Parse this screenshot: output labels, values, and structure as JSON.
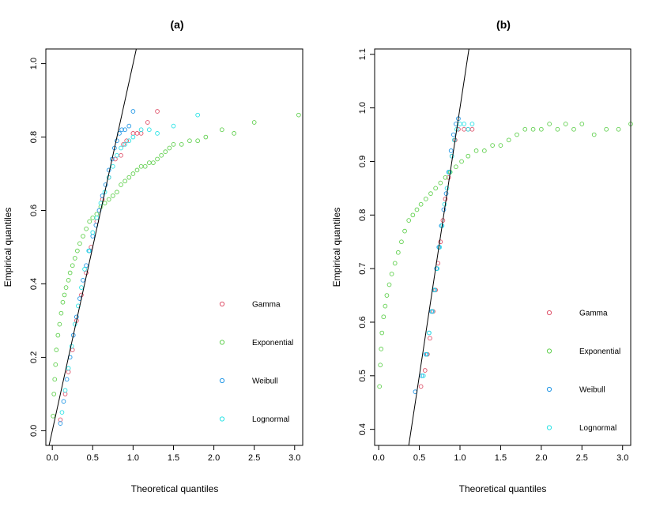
{
  "chart_data": [
    {
      "type": "scatter",
      "title": "(a)",
      "xlabel": "Theoretical quantiles",
      "ylabel": "Empirical quantiles",
      "xlim": [
        -0.08,
        3.1
      ],
      "ylim": [
        -0.04,
        1.04
      ],
      "xticks": [
        0.0,
        0.5,
        1.0,
        1.5,
        2.0,
        2.5,
        3.0
      ],
      "xtick_labels": [
        "0.0",
        "0.5",
        "1.0",
        "1.5",
        "2.0",
        "2.5",
        "3.0"
      ],
      "yticks": [
        0.0,
        0.2,
        0.4,
        0.6,
        0.8,
        1.0
      ],
      "ytick_labels": [
        "0.0",
        "0.2",
        "0.4",
        "0.6",
        "0.8",
        "1.0"
      ],
      "reference_line": {
        "x1": 0.0,
        "y1": 0.0,
        "x2": 1.0,
        "y2": 1.0
      },
      "legend": [
        {
          "label": "Gamma",
          "color": "#DF536B"
        },
        {
          "label": "Exponential",
          "color": "#61D04F"
        },
        {
          "label": "Weibull",
          "color": "#2297E6"
        },
        {
          "label": "Lognormal",
          "color": "#28E2E5"
        }
      ],
      "series": [
        {
          "name": "Gamma",
          "color": "#DF536B",
          "points": [
            [
              0.1,
              0.03
            ],
            [
              0.16,
              0.1
            ],
            [
              0.2,
              0.16
            ],
            [
              0.25,
              0.22
            ],
            [
              0.3,
              0.3
            ],
            [
              0.36,
              0.37
            ],
            [
              0.42,
              0.43
            ],
            [
              0.48,
              0.5
            ],
            [
              0.55,
              0.57
            ],
            [
              0.62,
              0.63
            ],
            [
              0.7,
              0.69
            ],
            [
              0.78,
              0.74
            ],
            [
              0.85,
              0.75
            ],
            [
              0.88,
              0.78
            ],
            [
              0.92,
              0.79
            ],
            [
              1.0,
              0.81
            ],
            [
              1.05,
              0.81
            ],
            [
              1.1,
              0.81
            ],
            [
              1.18,
              0.84
            ],
            [
              1.3,
              0.87
            ]
          ]
        },
        {
          "name": "Exponential",
          "color": "#61D04F",
          "points": [
            [
              0.01,
              0.04
            ],
            [
              0.02,
              0.1
            ],
            [
              0.03,
              0.14
            ],
            [
              0.04,
              0.18
            ],
            [
              0.05,
              0.22
            ],
            [
              0.07,
              0.26
            ],
            [
              0.09,
              0.29
            ],
            [
              0.11,
              0.32
            ],
            [
              0.13,
              0.35
            ],
            [
              0.15,
              0.37
            ],
            [
              0.17,
              0.39
            ],
            [
              0.2,
              0.41
            ],
            [
              0.22,
              0.43
            ],
            [
              0.25,
              0.45
            ],
            [
              0.28,
              0.47
            ],
            [
              0.31,
              0.49
            ],
            [
              0.34,
              0.51
            ],
            [
              0.38,
              0.53
            ],
            [
              0.42,
              0.55
            ],
            [
              0.46,
              0.57
            ],
            [
              0.5,
              0.58
            ],
            [
              0.55,
              0.59
            ],
            [
              0.6,
              0.61
            ],
            [
              0.65,
              0.62
            ],
            [
              0.7,
              0.63
            ],
            [
              0.75,
              0.64
            ],
            [
              0.8,
              0.65
            ],
            [
              0.85,
              0.67
            ],
            [
              0.9,
              0.68
            ],
            [
              0.95,
              0.69
            ],
            [
              1.0,
              0.7
            ],
            [
              1.05,
              0.71
            ],
            [
              1.1,
              0.72
            ],
            [
              1.15,
              0.72
            ],
            [
              1.2,
              0.73
            ],
            [
              1.25,
              0.73
            ],
            [
              1.3,
              0.74
            ],
            [
              1.35,
              0.75
            ],
            [
              1.4,
              0.76
            ],
            [
              1.45,
              0.77
            ],
            [
              1.5,
              0.78
            ],
            [
              1.6,
              0.78
            ],
            [
              1.7,
              0.79
            ],
            [
              1.8,
              0.79
            ],
            [
              1.9,
              0.8
            ],
            [
              2.1,
              0.82
            ],
            [
              2.25,
              0.81
            ],
            [
              2.5,
              0.84
            ],
            [
              3.05,
              0.86
            ]
          ]
        },
        {
          "name": "Weibull",
          "color": "#2297E6",
          "points": [
            [
              0.1,
              0.02
            ],
            [
              0.14,
              0.08
            ],
            [
              0.18,
              0.14
            ],
            [
              0.22,
              0.2
            ],
            [
              0.26,
              0.26
            ],
            [
              0.3,
              0.31
            ],
            [
              0.34,
              0.36
            ],
            [
              0.38,
              0.41
            ],
            [
              0.42,
              0.45
            ],
            [
              0.46,
              0.49
            ],
            [
              0.5,
              0.53
            ],
            [
              0.54,
              0.56
            ],
            [
              0.58,
              0.6
            ],
            [
              0.62,
              0.64
            ],
            [
              0.66,
              0.67
            ],
            [
              0.7,
              0.71
            ],
            [
              0.74,
              0.74
            ],
            [
              0.77,
              0.77
            ],
            [
              0.8,
              0.79
            ],
            [
              0.83,
              0.81
            ],
            [
              0.86,
              0.82
            ],
            [
              0.9,
              0.82
            ],
            [
              0.95,
              0.83
            ],
            [
              1.0,
              0.87
            ]
          ]
        },
        {
          "name": "Lognormal",
          "color": "#28E2E5",
          "points": [
            [
              0.12,
              0.05
            ],
            [
              0.16,
              0.11
            ],
            [
              0.2,
              0.17
            ],
            [
              0.24,
              0.23
            ],
            [
              0.28,
              0.29
            ],
            [
              0.32,
              0.34
            ],
            [
              0.36,
              0.39
            ],
            [
              0.4,
              0.44
            ],
            [
              0.45,
              0.49
            ],
            [
              0.5,
              0.54
            ],
            [
              0.55,
              0.58
            ],
            [
              0.6,
              0.62
            ],
            [
              0.65,
              0.65
            ],
            [
              0.7,
              0.69
            ],
            [
              0.75,
              0.72
            ],
            [
              0.8,
              0.75
            ],
            [
              0.85,
              0.77
            ],
            [
              0.9,
              0.78
            ],
            [
              0.95,
              0.79
            ],
            [
              1.0,
              0.8
            ],
            [
              1.1,
              0.82
            ],
            [
              1.2,
              0.82
            ],
            [
              1.3,
              0.81
            ],
            [
              1.5,
              0.83
            ],
            [
              1.8,
              0.86
            ]
          ]
        }
      ]
    },
    {
      "type": "scatter",
      "title": "(b)",
      "xlabel": "Theoretical quantiles",
      "ylabel": "Empirical quantiles",
      "xlim": [
        -0.05,
        3.1
      ],
      "ylim": [
        0.37,
        1.11
      ],
      "xticks": [
        0.0,
        0.5,
        1.0,
        1.5,
        2.0,
        2.5,
        3.0
      ],
      "xtick_labels": [
        "0.0",
        "0.5",
        "1.0",
        "1.5",
        "2.0",
        "2.5",
        "3.0"
      ],
      "yticks": [
        0.4,
        0.5,
        0.6,
        0.7,
        0.8,
        0.9,
        1.0,
        1.1
      ],
      "ytick_labels": [
        "0.4",
        "0.5",
        "0.6",
        "0.7",
        "0.8",
        "0.9",
        "1.0",
        "1.1"
      ],
      "reference_line": {
        "x1": 0.4,
        "y1": 0.4,
        "x2": 1.0,
        "y2": 1.0
      },
      "legend": [
        {
          "label": "Gamma",
          "color": "#DF536B"
        },
        {
          "label": "Exponential",
          "color": "#61D04F"
        },
        {
          "label": "Weibull",
          "color": "#2297E6"
        },
        {
          "label": "Lognormal",
          "color": "#28E2E5"
        }
      ],
      "series": [
        {
          "name": "Gamma",
          "color": "#DF536B",
          "points": [
            [
              0.52,
              0.48
            ],
            [
              0.57,
              0.51
            ],
            [
              0.6,
              0.54
            ],
            [
              0.63,
              0.57
            ],
            [
              0.67,
              0.62
            ],
            [
              0.7,
              0.66
            ],
            [
              0.73,
              0.71
            ],
            [
              0.76,
              0.75
            ],
            [
              0.79,
              0.79
            ],
            [
              0.82,
              0.83
            ],
            [
              0.86,
              0.87
            ],
            [
              0.9,
              0.91
            ],
            [
              0.94,
              0.94
            ],
            [
              0.98,
              0.96
            ],
            [
              1.05,
              0.96
            ],
            [
              1.1,
              0.96
            ],
            [
              1.15,
              0.96
            ]
          ]
        },
        {
          "name": "Exponential",
          "color": "#61D04F",
          "points": [
            [
              0.01,
              0.48
            ],
            [
              0.02,
              0.52
            ],
            [
              0.03,
              0.55
            ],
            [
              0.04,
              0.58
            ],
            [
              0.06,
              0.61
            ],
            [
              0.08,
              0.63
            ],
            [
              0.1,
              0.65
            ],
            [
              0.13,
              0.67
            ],
            [
              0.16,
              0.69
            ],
            [
              0.2,
              0.71
            ],
            [
              0.24,
              0.73
            ],
            [
              0.28,
              0.75
            ],
            [
              0.32,
              0.77
            ],
            [
              0.37,
              0.79
            ],
            [
              0.42,
              0.8
            ],
            [
              0.47,
              0.81
            ],
            [
              0.52,
              0.82
            ],
            [
              0.58,
              0.83
            ],
            [
              0.64,
              0.84
            ],
            [
              0.7,
              0.85
            ],
            [
              0.76,
              0.86
            ],
            [
              0.82,
              0.87
            ],
            [
              0.88,
              0.88
            ],
            [
              0.95,
              0.89
            ],
            [
              1.02,
              0.9
            ],
            [
              1.1,
              0.91
            ],
            [
              1.2,
              0.92
            ],
            [
              1.3,
              0.92
            ],
            [
              1.4,
              0.93
            ],
            [
              1.5,
              0.93
            ],
            [
              1.6,
              0.94
            ],
            [
              1.7,
              0.95
            ],
            [
              1.8,
              0.96
            ],
            [
              1.9,
              0.96
            ],
            [
              2.0,
              0.96
            ],
            [
              2.1,
              0.97
            ],
            [
              2.2,
              0.96
            ],
            [
              2.3,
              0.97
            ],
            [
              2.4,
              0.96
            ],
            [
              2.5,
              0.97
            ],
            [
              2.65,
              0.95
            ],
            [
              2.8,
              0.96
            ],
            [
              2.95,
              0.96
            ],
            [
              3.1,
              0.97
            ]
          ]
        },
        {
          "name": "Weibull",
          "color": "#2297E6",
          "points": [
            [
              0.45,
              0.47
            ],
            [
              0.53,
              0.5
            ],
            [
              0.58,
              0.54
            ],
            [
              0.62,
              0.58
            ],
            [
              0.65,
              0.62
            ],
            [
              0.68,
              0.66
            ],
            [
              0.71,
              0.7
            ],
            [
              0.74,
              0.74
            ],
            [
              0.77,
              0.78
            ],
            [
              0.8,
              0.81
            ],
            [
              0.83,
              0.84
            ],
            [
              0.86,
              0.88
            ],
            [
              0.89,
              0.92
            ],
            [
              0.92,
              0.95
            ],
            [
              0.95,
              0.97
            ],
            [
              0.98,
              0.98
            ]
          ]
        },
        {
          "name": "Lognormal",
          "color": "#28E2E5",
          "points": [
            [
              0.55,
              0.5
            ],
            [
              0.59,
              0.54
            ],
            [
              0.62,
              0.58
            ],
            [
              0.66,
              0.62
            ],
            [
              0.69,
              0.66
            ],
            [
              0.72,
              0.7
            ],
            [
              0.75,
              0.74
            ],
            [
              0.78,
              0.78
            ],
            [
              0.81,
              0.82
            ],
            [
              0.84,
              0.85
            ],
            [
              0.87,
              0.88
            ],
            [
              0.9,
              0.91
            ],
            [
              0.93,
              0.94
            ],
            [
              0.96,
              0.96
            ],
            [
              1.0,
              0.97
            ],
            [
              1.05,
              0.97
            ],
            [
              1.1,
              0.96
            ],
            [
              1.15,
              0.97
            ]
          ]
        }
      ]
    }
  ]
}
